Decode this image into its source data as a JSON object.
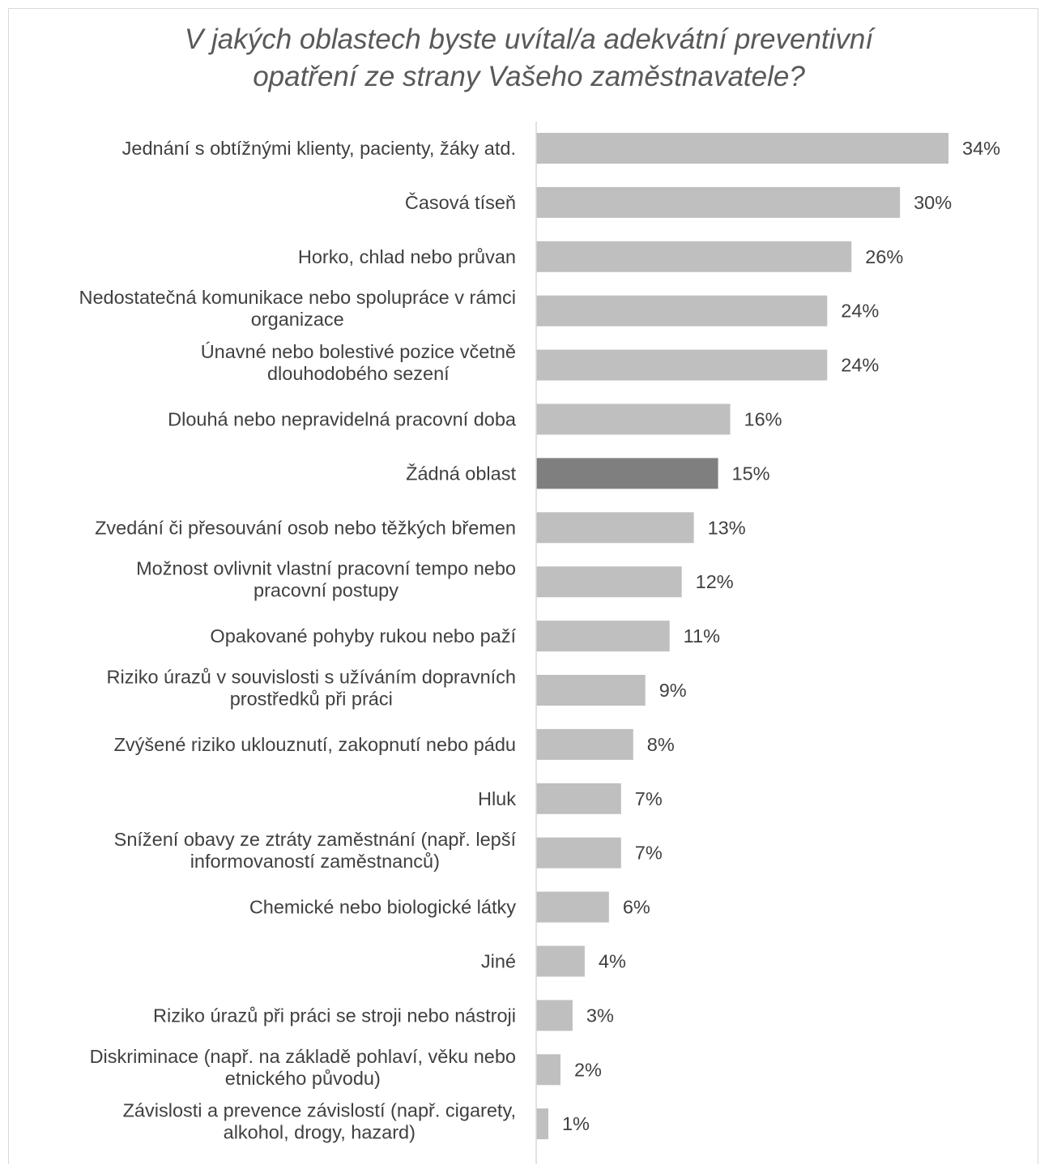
{
  "chart_data": {
    "type": "bar",
    "orientation": "horizontal",
    "title": "V jakých oblastech byste uvítal/a adekvátní preventivní opatření ze strany Vašeho zaměstnavatele?",
    "title_lines": [
      "V jakých oblastech byste uvítal/a adekvátní preventivní",
      "opatření ze strany Vašeho zaměstnavatele?"
    ],
    "categories": [
      [
        "Jednání s obtížnými klienty, pacienty, žáky atd."
      ],
      [
        "Časová tíseň"
      ],
      [
        "Horko, chlad nebo průvan"
      ],
      [
        "Nedostatečná komunikace nebo spolupráce v rámci",
        "organizace"
      ],
      [
        "Únavné nebo bolestivé pozice včetně",
        "dlouhodobého sezení"
      ],
      [
        "Dlouhá nebo nepravidelná pracovní doba"
      ],
      [
        "Žádná oblast"
      ],
      [
        "Zvedání či přesouvání osob nebo těžkých břemen"
      ],
      [
        "Možnost ovlivnit vlastní pracovní tempo nebo",
        "pracovní postupy"
      ],
      [
        "Opakované pohyby rukou nebo paží"
      ],
      [
        "Riziko úrazů v souvislosti s užíváním dopravních",
        "prostředků při práci"
      ],
      [
        "Zvýšené riziko uklouznutí, zakopnutí nebo pádu"
      ],
      [
        "Hluk"
      ],
      [
        "Snížení obavy ze ztráty zaměstnání (např. lepší",
        "informovaností zaměstnanců)"
      ],
      [
        "Chemické nebo biologické látky"
      ],
      [
        "Jiné"
      ],
      [
        "Riziko úrazů při práci se stroji nebo nástroji"
      ],
      [
        "Diskriminace (např. na základě pohlaví, věku nebo",
        "etnického původu)"
      ],
      [
        "Závislosti a prevence závislostí (např. cigarety,",
        "alkohol, drogy, hazard)"
      ]
    ],
    "values": [
      34,
      30,
      26,
      24,
      24,
      16,
      15,
      13,
      12,
      11,
      9,
      8,
      7,
      7,
      6,
      4,
      3,
      2,
      1
    ],
    "value_labels": [
      "34%",
      "30%",
      "26%",
      "24%",
      "24%",
      "16%",
      "15%",
      "13%",
      "12%",
      "11%",
      "9%",
      "8%",
      "7%",
      "7%",
      "6%",
      "4%",
      "3%",
      "2%",
      "1%"
    ],
    "highlight_index": 6,
    "colors": {
      "bar": "#bfbfbf",
      "highlight": "#7f7f7f",
      "axis": "#d9d9d9",
      "text": "#404040",
      "title": "#595959"
    },
    "grid": false,
    "legend": "none",
    "xlim": [
      0,
      34
    ]
  }
}
